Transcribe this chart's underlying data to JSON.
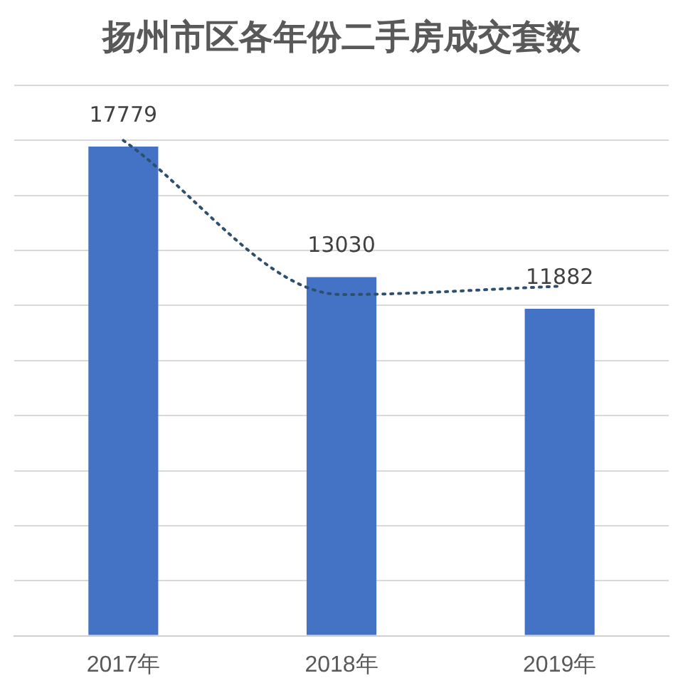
{
  "chart_data": {
    "type": "bar",
    "title": "扬州市区各年份二手房成交套数",
    "categories": [
      "2017年",
      "2018年",
      "2019年"
    ],
    "series": [
      {
        "color": "#4472c4",
        "values": [
          17779,
          13030,
          11882
        ],
        "value_labels": [
          "17779",
          "13030",
          "11882"
        ]
      },
      {
        "type": "line",
        "color": "#2f4f6f",
        "values": [
          18000,
          12400,
          12700
        ],
        "line_style": "dotted",
        "marker": "none"
      }
    ],
    "ylim": [
      0,
      20000
    ],
    "yticks": [
      {
        "value": 0,
        "label": null
      },
      {
        "value": 2000,
        "label": null
      },
      {
        "value": 4000,
        "label": null
      },
      {
        "value": 6000,
        "label": null
      },
      {
        "value": 8000,
        "label": null
      },
      {
        "value": 10000,
        "label": null
      },
      {
        "value": 12000,
        "label": null
      },
      {
        "value": 14000,
        "label": null
      },
      {
        "value": 16000,
        "label": null
      },
      {
        "value": 18000,
        "label": null
      },
      {
        "value": 20000,
        "label": null
      }
    ],
    "grid": "y",
    "legend": false,
    "tick_labels": "x"
  }
}
